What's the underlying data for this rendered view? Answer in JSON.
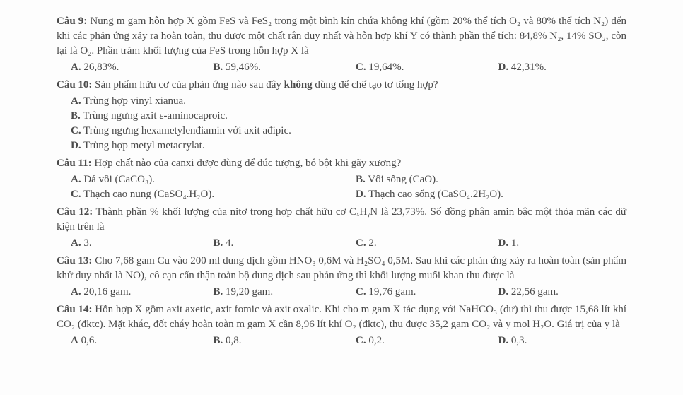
{
  "q9": {
    "label": "Câu 9:",
    "text": "Nung m gam hỗn hợp X gồm FeS và FeS₂ trong một bình kín chứa không khí (gồm 20% thể tích O₂ và 80% thể tích N₂) đến khi các phản ứng xảy ra hoàn toàn, thu được một chất rắn duy nhất và hỗn hợp khí Y có thành phần thể tích: 84,8% N₂, 14% SO₂, còn lại là O₂. Phần trăm khối lượng của FeS trong hỗn hợp X là",
    "optA": "26,83%.",
    "optB": "59,46%.",
    "optC": "19,64%.",
    "optD": "42,31%."
  },
  "q10": {
    "label": "Câu 10:",
    "text": "Sản phẩm hữu cơ của phản ứng nào sau đây không dùng để chế tạo tơ tổng hợp?",
    "optA": "Trùng hợp vinyl xianua.",
    "optB": "Trùng ngưng axit ε-aminocaproic.",
    "optC": "Trùng ngưng hexametylenđiamin với axit ađipic.",
    "optD": "Trùng hợp metyl metacrylat."
  },
  "q11": {
    "label": "Câu 11:",
    "text": "Hợp chất nào của canxi được dùng để đúc tượng, bó bột khi gãy xương?",
    "optA": "Đá vôi (CaCO₃).",
    "optB": "Vôi sống (CaO).",
    "optC": "Thạch cao nung (CaSO₄.H₂O).",
    "optD": "Thạch cao sống (CaSO₄.2H₂O)."
  },
  "q12": {
    "label": "Câu 12:",
    "text": "Thành phần % khối lượng của nitơ trong hợp chất hữu cơ CₓHᵧN là 23,73%. Số đồng phân amin bậc một thỏa mãn các dữ kiện trên là",
    "optA": "3.",
    "optB": "4.",
    "optC": "2.",
    "optD": "1."
  },
  "q13": {
    "label": "Câu 13:",
    "text": "Cho 7,68 gam Cu vào 200 ml dung dịch gồm HNO₃ 0,6M và H₂SO₄ 0,5M. Sau khi các phản ứng xảy ra hoàn toàn (sản phẩm khử duy nhất là NO), cô cạn cẩn thận toàn bộ dung dịch sau phản ứng thì khối lượng muối khan thu được là",
    "optA": "20,16 gam.",
    "optB": "19,20 gam.",
    "optC": "19,76 gam.",
    "optD": "22,56 gam."
  },
  "q14": {
    "label": "Câu 14:",
    "text": "Hỗn hợp X gồm axit axetic, axit fomic và axit oxalic. Khi cho m gam X tác dụng với NaHCO₃ (dư) thì thu được 15,68 lít khí CO₂ (đktc). Mặt khác, đốt cháy hoàn toàn m gam X cần 8,96 lít khí O₂ (đktc), thu được 35,2 gam CO₂ và y mol H₂O. Giá trị của y là",
    "optA": "0,6.",
    "optB": "0,8.",
    "optC": "0,2.",
    "optD": "0,3."
  },
  "prefixes": {
    "A": "A.",
    "B": "B.",
    "C": "C.",
    "D": "D."
  }
}
